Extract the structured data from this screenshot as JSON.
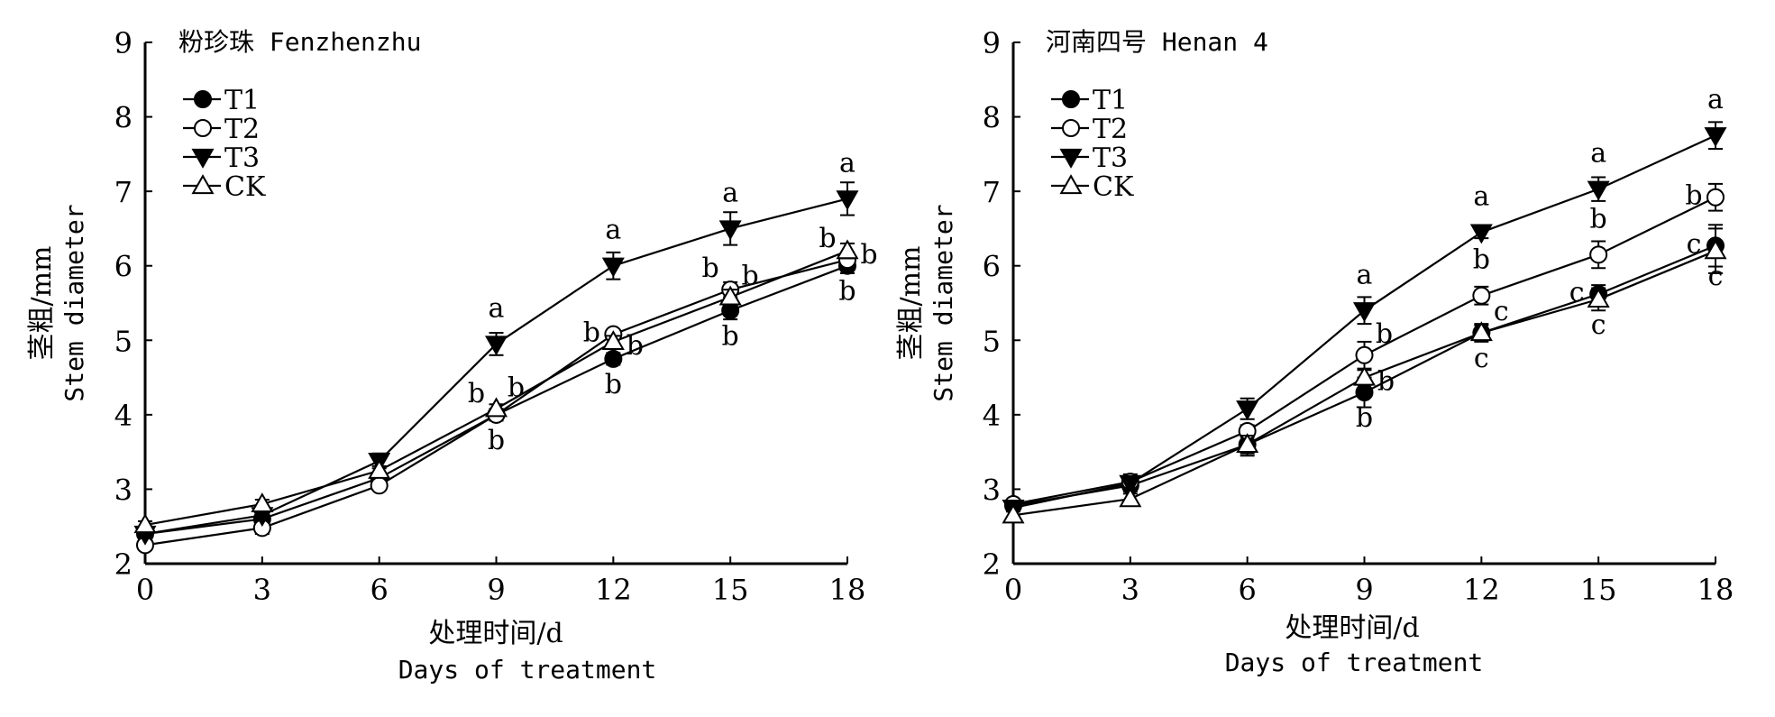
{
  "chart_data": [
    {
      "type": "line",
      "title": "粉珍珠 Fenzhenzhu",
      "xlabel": "处理时间/d",
      "xlabel_en": "Days of treatment",
      "ylabel": "茎粗/mm",
      "ylabel_en": "Stem diameter",
      "x": [
        0,
        3,
        6,
        9,
        12,
        15,
        18
      ],
      "xticks": [
        "0",
        "3",
        "6",
        "9",
        "12",
        "15",
        "18"
      ],
      "yticks": [
        "2",
        "3",
        "4",
        "5",
        "6",
        "7",
        "8",
        "9"
      ],
      "xlim": [
        0,
        18
      ],
      "ylim": [
        2,
        9
      ],
      "grid": false,
      "legend_position": "top-left",
      "series": [
        {
          "name": "T1",
          "marker": "filled-circle",
          "values": [
            2.4,
            2.6,
            3.15,
            4.0,
            4.75,
            5.4,
            6.0
          ],
          "errors": [
            0.05,
            0.06,
            0.06,
            0.08,
            0.08,
            0.12,
            0.1
          ]
        },
        {
          "name": "T2",
          "marker": "open-circle",
          "values": [
            2.25,
            2.48,
            3.05,
            4.0,
            5.08,
            5.68,
            6.08
          ],
          "errors": [
            0.06,
            0.08,
            0.06,
            0.06,
            0.05,
            0.1,
            0.1
          ]
        },
        {
          "name": "T3",
          "marker": "filled-triangle-down",
          "values": [
            2.4,
            2.65,
            3.38,
            4.95,
            6.0,
            6.5,
            6.9
          ],
          "errors": [
            0.05,
            0.06,
            0.1,
            0.15,
            0.18,
            0.22,
            0.22
          ]
        },
        {
          "name": "CK",
          "marker": "open-triangle-up",
          "values": [
            2.52,
            2.8,
            3.25,
            4.08,
            4.98,
            5.58,
            6.2
          ],
          "errors": [
            0.05,
            0.06,
            0.06,
            0.06,
            0.08,
            0.1,
            0.1
          ]
        }
      ],
      "annotations": [
        {
          "x": 9,
          "series": "T3",
          "text": "a",
          "place": "above"
        },
        {
          "x": 9,
          "series": "T2",
          "text": "b",
          "place": "upper-left"
        },
        {
          "x": 9,
          "series": "CK",
          "text": "b",
          "place": "upper-right"
        },
        {
          "x": 9,
          "series": "T1",
          "text": "b",
          "place": "below"
        },
        {
          "x": 12,
          "series": "T3",
          "text": "a",
          "place": "above"
        },
        {
          "x": 12,
          "series": "T2",
          "text": "b",
          "place": "left"
        },
        {
          "x": 12,
          "series": "CK",
          "text": "b",
          "place": "right"
        },
        {
          "x": 12,
          "series": "T1",
          "text": "b",
          "place": "below"
        },
        {
          "x": 15,
          "series": "T3",
          "text": "a",
          "place": "above"
        },
        {
          "x": 15,
          "series": "T2",
          "text": "b",
          "place": "upper-left"
        },
        {
          "x": 15,
          "series": "CK",
          "text": "b",
          "place": "upper-right"
        },
        {
          "x": 15,
          "series": "T1",
          "text": "b",
          "place": "below"
        },
        {
          "x": 18,
          "series": "T3",
          "text": "a",
          "place": "above"
        },
        {
          "x": 18,
          "series": "T2",
          "text": "b",
          "place": "upper-left"
        },
        {
          "x": 18,
          "series": "CK",
          "text": "b",
          "place": "right"
        },
        {
          "x": 18,
          "series": "T1",
          "text": "b",
          "place": "below"
        }
      ]
    },
    {
      "type": "line",
      "title": "河南四号 Henan 4",
      "xlabel": "处理时间/d",
      "xlabel_en": "Days of treatment",
      "ylabel": "茎粗/mm",
      "ylabel_en": "Stem diameter",
      "x": [
        0,
        3,
        6,
        9,
        12,
        15,
        18
      ],
      "xticks": [
        "0",
        "3",
        "6",
        "9",
        "12",
        "15",
        "18"
      ],
      "yticks": [
        "2",
        "3",
        "4",
        "5",
        "6",
        "7",
        "8",
        "9"
      ],
      "xlim": [
        0,
        18
      ],
      "ylim": [
        2,
        9
      ],
      "grid": false,
      "legend_position": "top-left",
      "series": [
        {
          "name": "T1",
          "marker": "filled-circle",
          "values": [
            2.78,
            3.05,
            3.6,
            4.3,
            5.1,
            5.62,
            6.27
          ],
          "errors": [
            0.05,
            0.08,
            0.15,
            0.2,
            0.12,
            0.12,
            0.28
          ]
        },
        {
          "name": "T2",
          "marker": "open-circle",
          "values": [
            2.8,
            3.1,
            3.78,
            4.8,
            5.6,
            6.15,
            6.92
          ],
          "errors": [
            0.05,
            0.1,
            0.08,
            0.18,
            0.12,
            0.18,
            0.18
          ]
        },
        {
          "name": "T3",
          "marker": "filled-triangle-down",
          "values": [
            2.75,
            3.08,
            4.08,
            5.4,
            6.45,
            7.03,
            7.75
          ],
          "errors": [
            0.05,
            0.06,
            0.14,
            0.18,
            0.08,
            0.16,
            0.18
          ]
        },
        {
          "name": "CK",
          "marker": "open-triangle-up",
          "values": [
            2.65,
            2.87,
            3.6,
            4.5,
            5.1,
            5.55,
            6.2
          ],
          "errors": [
            0.05,
            0.07,
            0.12,
            0.1,
            0.1,
            0.15,
            0.3
          ]
        }
      ],
      "annotations": [
        {
          "x": 9,
          "series": "T3",
          "text": "a",
          "place": "above"
        },
        {
          "x": 9,
          "series": "T2",
          "text": "b",
          "place": "upper-right"
        },
        {
          "x": 9,
          "series": "CK",
          "text": "b",
          "place": "right"
        },
        {
          "x": 9,
          "series": "T1",
          "text": "b",
          "place": "below"
        },
        {
          "x": 12,
          "series": "T3",
          "text": "a",
          "place": "above"
        },
        {
          "x": 12,
          "series": "T2",
          "text": "b",
          "place": "above"
        },
        {
          "x": 12,
          "series": "CK",
          "text": "c",
          "place": "upper-right"
        },
        {
          "x": 12,
          "series": "T1",
          "text": "c",
          "place": "below"
        },
        {
          "x": 15,
          "series": "T3",
          "text": "a",
          "place": "above"
        },
        {
          "x": 15,
          "series": "T2",
          "text": "b",
          "place": "above"
        },
        {
          "x": 15,
          "series": "T1",
          "text": "c",
          "place": "left"
        },
        {
          "x": 15,
          "series": "CK",
          "text": "c",
          "place": "below"
        },
        {
          "x": 18,
          "series": "T3",
          "text": "a",
          "place": "above"
        },
        {
          "x": 18,
          "series": "T2",
          "text": "b",
          "place": "left"
        },
        {
          "x": 18,
          "series": "T1",
          "text": "c",
          "place": "left"
        },
        {
          "x": 18,
          "series": "CK",
          "text": "c",
          "place": "below"
        }
      ]
    }
  ]
}
